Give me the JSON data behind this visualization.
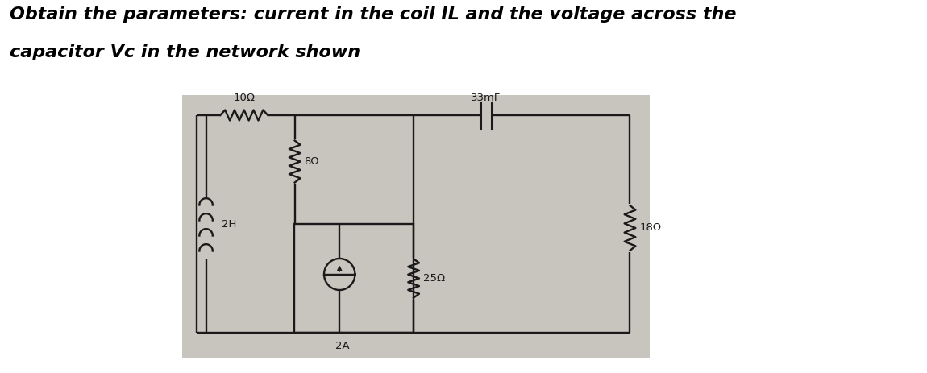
{
  "title_line1": "Obtain the parameters: current in the coil IL and the voltage across the",
  "title_line2": "capacitor Vc in the network shown",
  "title_fontsize": 16,
  "bg_color": "#c8c4be",
  "line_color": "#1a1a1a",
  "label_10R": "10Ω",
  "label_2H": "2H",
  "label_8R": "8Ω",
  "label_33mF": "33mF",
  "label_25R": "25Ω",
  "label_18R": "18Ω",
  "label_2A": "2A",
  "lw": 1.7
}
